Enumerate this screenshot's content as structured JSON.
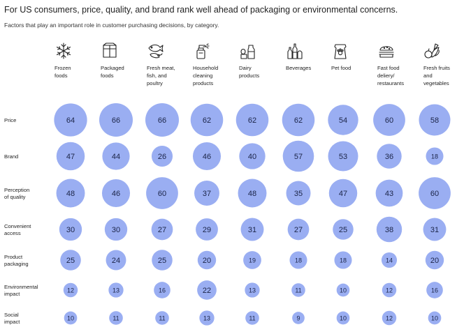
{
  "header": {
    "title": "For US consumers, price, quality, and brand rank well ahead of packaging or environmental concerns.",
    "subtitle": "Factors that play an important role in customer purchasing decisions, by category."
  },
  "colors": {
    "bubble": "#9aaef2",
    "value_text": "#1b2447"
  },
  "chart_data": {
    "type": "bubble-matrix",
    "categories": [
      {
        "label_lines": [
          "Frozen",
          "foods"
        ],
        "icon": "snowflake-icon"
      },
      {
        "label_lines": [
          "Packaged",
          "foods"
        ],
        "icon": "package-box-icon"
      },
      {
        "label_lines": [
          "Fresh meat,",
          "fish, and",
          "poultry"
        ],
        "icon": "fish-meat-icon"
      },
      {
        "label_lines": [
          "Household",
          "cleaning",
          "products"
        ],
        "icon": "spray-bottle-icon"
      },
      {
        "label_lines": [
          "Dairy",
          "products"
        ],
        "icon": "dairy-icon"
      },
      {
        "label_lines": [
          "Beverages"
        ],
        "icon": "bottles-icon"
      },
      {
        "label_lines": [
          "Pet food"
        ],
        "icon": "pet-food-bag-icon"
      },
      {
        "label_lines": [
          "Fast food",
          "deliery/",
          "restaurants"
        ],
        "icon": "burger-icon"
      },
      {
        "label_lines": [
          "Fresh fruits",
          "and",
          "vegetables"
        ],
        "icon": "fruits-vegetables-icon"
      }
    ],
    "rows": [
      {
        "label_lines": [
          "Price"
        ],
        "values": [
          64,
          66,
          66,
          62,
          62,
          62,
          54,
          60,
          58
        ]
      },
      {
        "label_lines": [
          "Brand"
        ],
        "values": [
          47,
          44,
          26,
          46,
          40,
          57,
          53,
          36,
          18
        ]
      },
      {
        "label_lines": [
          "Perception",
          "of quality"
        ],
        "values": [
          48,
          46,
          60,
          37,
          48,
          35,
          47,
          43,
          60
        ]
      },
      {
        "label_lines": [
          "Convenient",
          "access"
        ],
        "values": [
          30,
          30,
          27,
          29,
          31,
          27,
          25,
          38,
          31
        ]
      },
      {
        "label_lines": [
          "Product",
          "packaging"
        ],
        "values": [
          25,
          24,
          25,
          20,
          19,
          18,
          18,
          14,
          20
        ]
      },
      {
        "label_lines": [
          "Environmental",
          "impact"
        ],
        "values": [
          12,
          13,
          16,
          22,
          13,
          11,
          10,
          12,
          16
        ]
      },
      {
        "label_lines": [
          "Social",
          "impact"
        ],
        "values": [
          10,
          11,
          11,
          13,
          11,
          9,
          10,
          12,
          10
        ]
      }
    ]
  }
}
